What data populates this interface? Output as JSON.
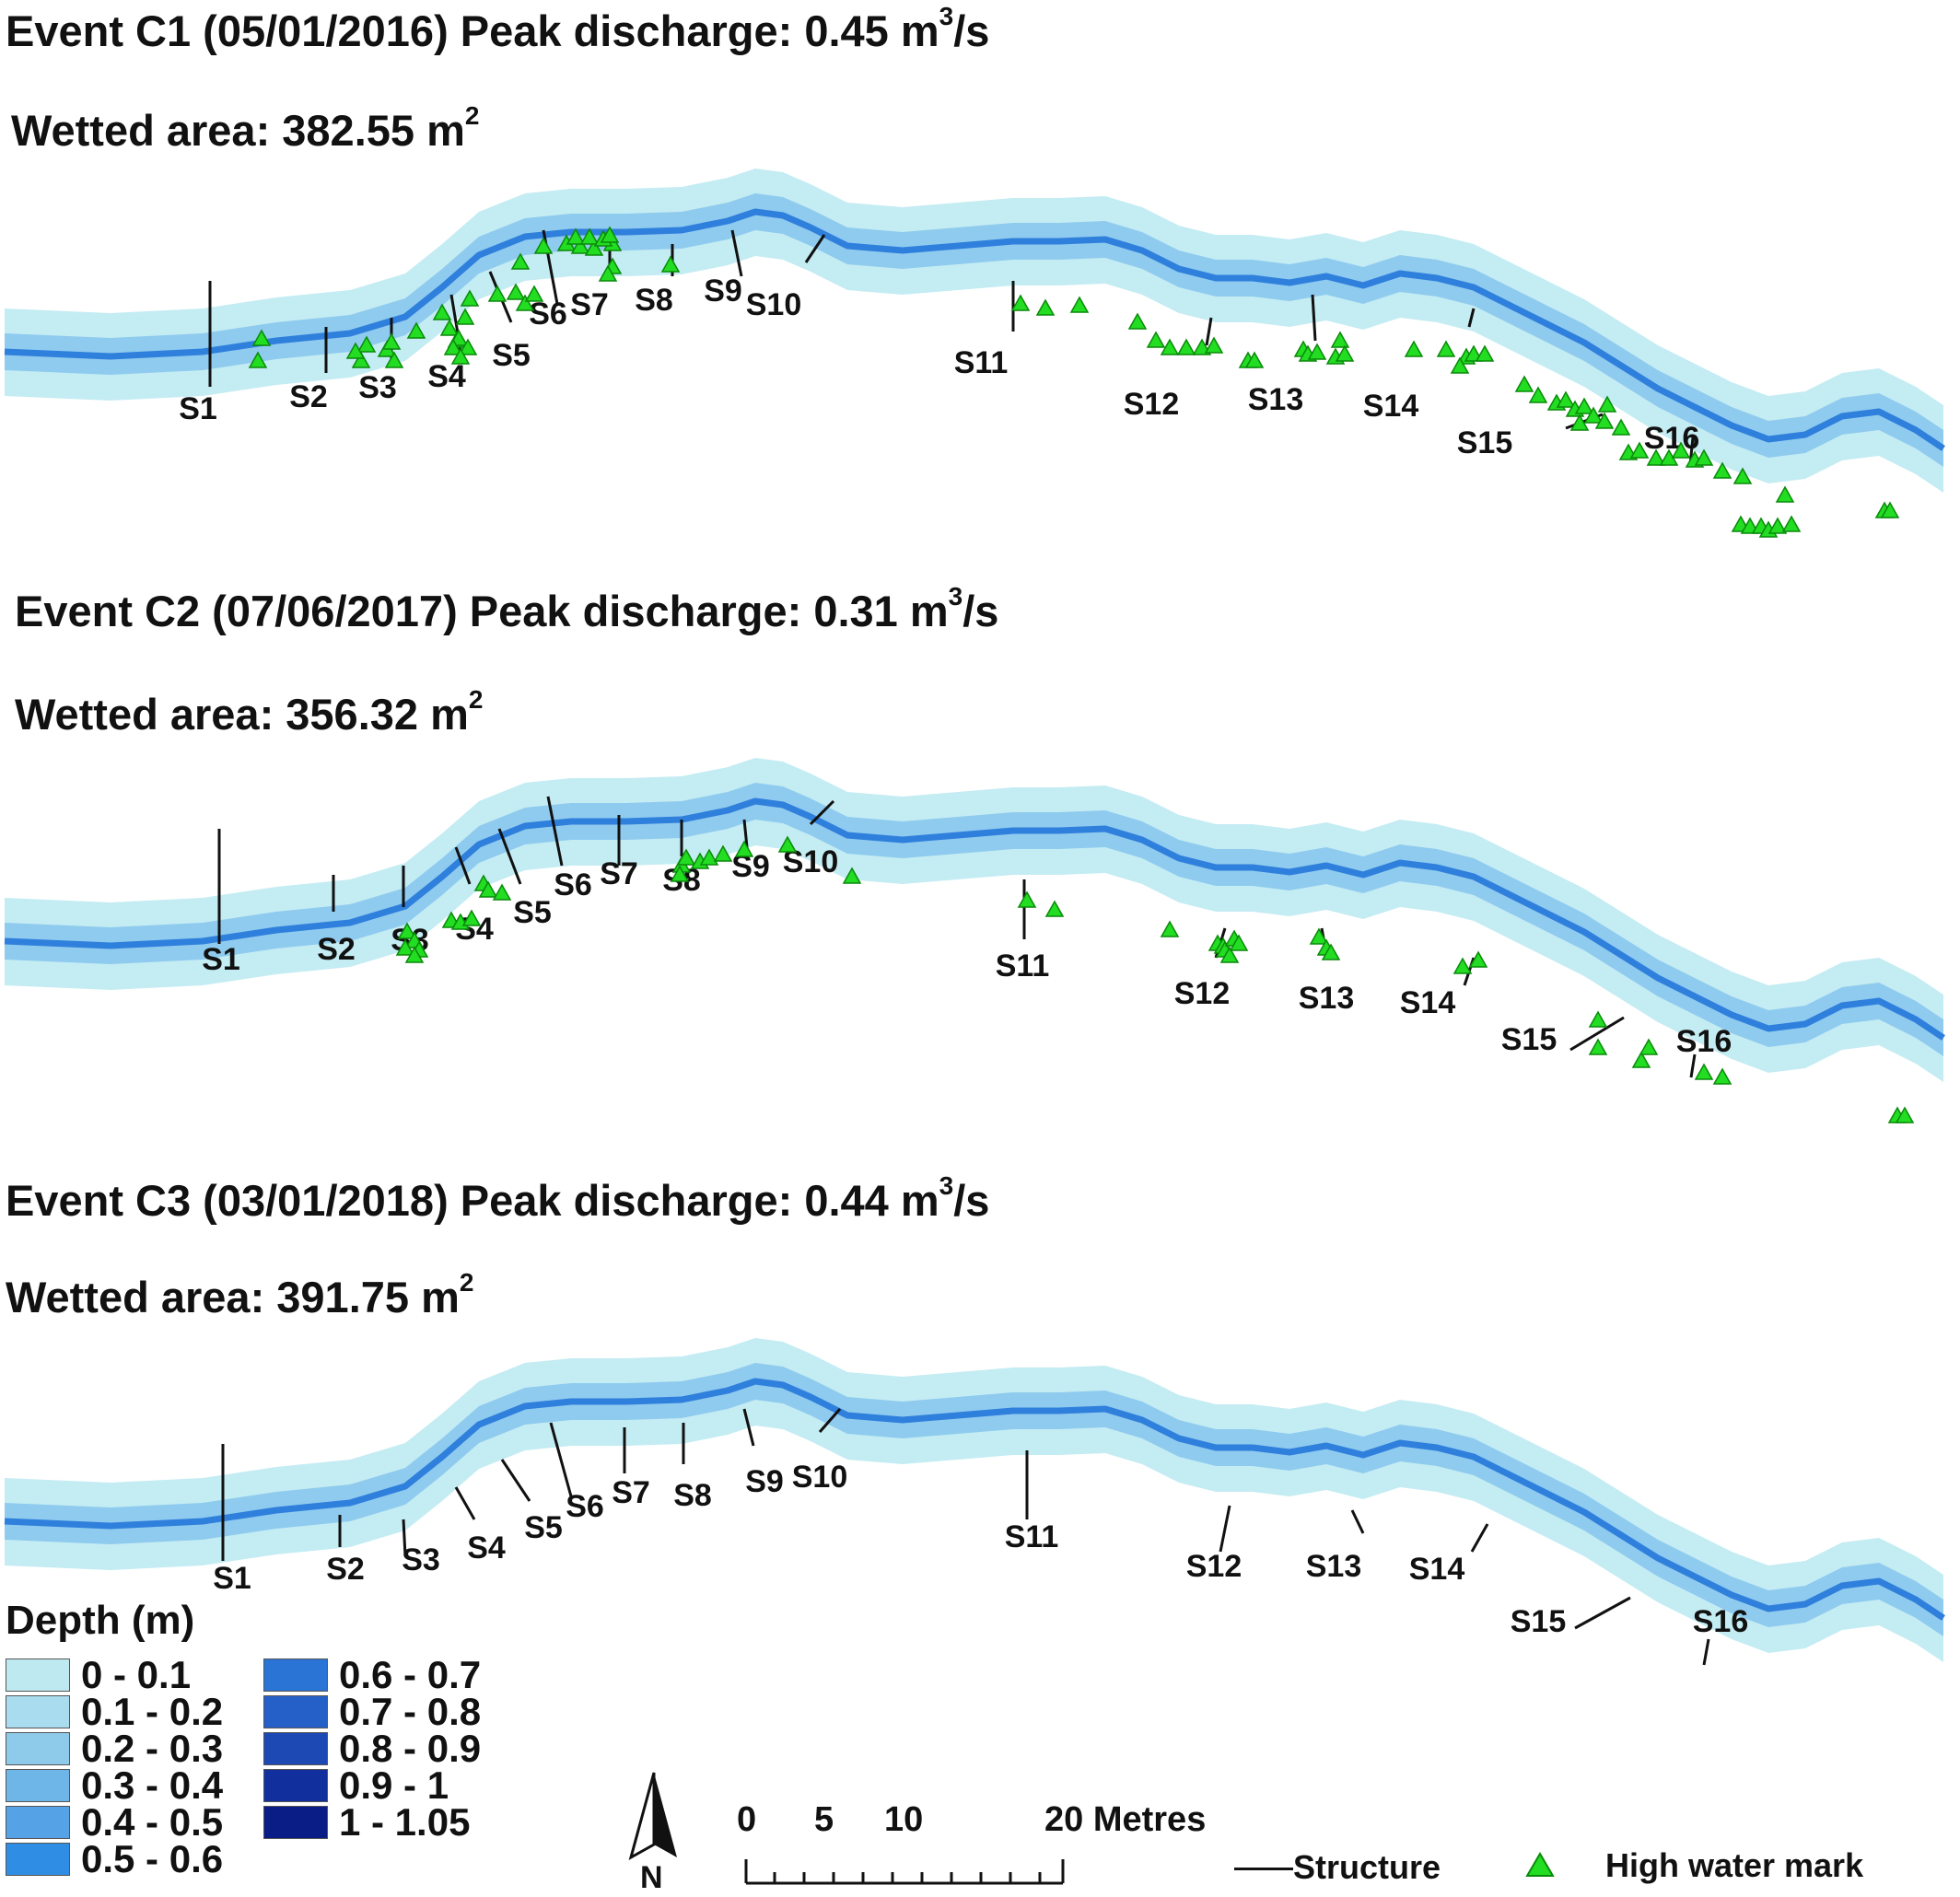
{
  "panels": [
    {
      "title_text": "Event C1 (05/01/2016) Peak discharge: 0.45 m",
      "title_sup": "3",
      "title_unit": "/s",
      "area_text": "Wetted area: 382.55 m",
      "area_sup": "2"
    },
    {
      "title_text": "Event C2 (07/06/2017) Peak discharge: 0.31 m",
      "title_sup": "3",
      "title_unit": "/s",
      "area_text": "Wetted area: 356.32 m",
      "area_sup": "2"
    },
    {
      "title_text": "Event C3 (03/01/2018) Peak discharge: 0.44 m",
      "title_sup": "3",
      "title_unit": "/s",
      "area_text": "Wetted area: 391.75 m",
      "area_sup": "2"
    }
  ],
  "structure_labels": [
    "S1",
    "S2",
    "S3",
    "S4",
    "S5",
    "S6",
    "S7",
    "S8",
    "S9",
    "S10",
    "S11",
    "S12",
    "S13",
    "S14",
    "S15",
    "S16"
  ],
  "legend": {
    "title": "Depth (m)",
    "classes": [
      {
        "label": "0 - 0.1",
        "color": "#bfe9f0"
      },
      {
        "label": "0.1 - 0.2",
        "color": "#a9dcee"
      },
      {
        "label": "0.2 - 0.3",
        "color": "#8ecbeb"
      },
      {
        "label": "0.3 - 0.4",
        "color": "#6fb6e8"
      },
      {
        "label": "0.4 - 0.5",
        "color": "#55a3e6"
      },
      {
        "label": "0.5 - 0.6",
        "color": "#2f8de4"
      },
      {
        "label": "0.6 - 0.7",
        "color": "#2a74d6"
      },
      {
        "label": "0.7 - 0.8",
        "color": "#2560c8"
      },
      {
        "label": "0.8 - 0.9",
        "color": "#1c49b4"
      },
      {
        "label": "0.9 - 1",
        "color": "#11309e"
      },
      {
        "label": "1 - 1.05",
        "color": "#0a1c86"
      }
    ]
  },
  "scale_bar": {
    "ticks": [
      "0",
      "5",
      "10",
      "20 Metres"
    ]
  },
  "north_arrow": {
    "label": "N",
    "icon": "north-arrow-icon"
  },
  "key": {
    "structure_label": "Structure",
    "hwm_label": "High water mark",
    "hwm_color": "#22dd22"
  },
  "colors": {
    "channel_light": "#c4ecf3",
    "channel_mid": "#8fcbee",
    "channel_thalweg": "#2f7fdc",
    "hwm": "#22dd22"
  }
}
